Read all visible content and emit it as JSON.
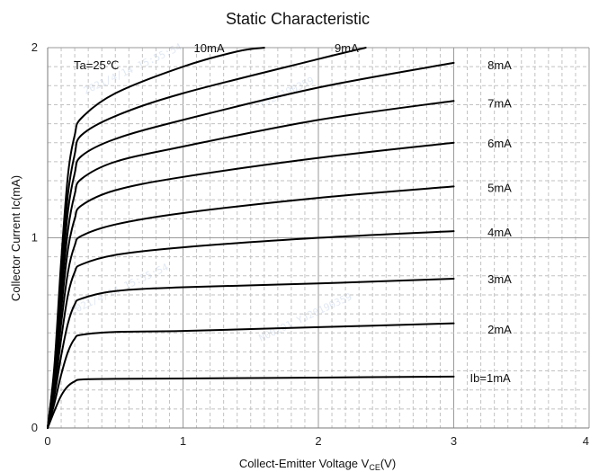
{
  "chart_data": {
    "type": "line",
    "title": "Static Characteristic",
    "xlabel_main": "Collect-Emitter Voltage  V",
    "xlabel_sub": "CE",
    "xlabel_unit": "(V)",
    "ylabel": "Collector  Current   Ic(mA)",
    "annotation": "Ta=25℃",
    "xlim": [
      0,
      4
    ],
    "ylim": [
      0,
      2
    ],
    "x_ticks": [
      "0",
      "1",
      "2",
      "3",
      "4"
    ],
    "y_ticks": [
      "0",
      "1",
      "2"
    ],
    "grid": true,
    "watermarks": [
      "2021/4/14 15:55:54",
      "YJ20190359",
      "2021/4/14 15:55:54",
      "N00201  YJ20190359"
    ],
    "series": [
      {
        "name": "Ib=1mA",
        "label": "Ib=1mA",
        "label_at": [
          3.12,
          0.265
        ],
        "points": [
          [
            0,
            0
          ],
          [
            0.05,
            0.09
          ],
          [
            0.1,
            0.17
          ],
          [
            0.15,
            0.22
          ],
          [
            0.2,
            0.245
          ],
          [
            0.25,
            0.255
          ],
          [
            0.5,
            0.258
          ],
          [
            1,
            0.26
          ],
          [
            2,
            0.265
          ],
          [
            3,
            0.27
          ]
        ]
      },
      {
        "name": "2mA",
        "label": "2mA",
        "label_at": [
          3.25,
          0.52
        ],
        "points": [
          [
            0,
            0
          ],
          [
            0.05,
            0.13
          ],
          [
            0.1,
            0.28
          ],
          [
            0.15,
            0.4
          ],
          [
            0.2,
            0.47
          ],
          [
            0.25,
            0.49
          ],
          [
            0.5,
            0.505
          ],
          [
            1,
            0.51
          ],
          [
            2,
            0.53
          ],
          [
            3,
            0.55
          ]
        ]
      },
      {
        "name": "3mA",
        "label": "3mA",
        "label_at": [
          3.25,
          0.785
        ],
        "points": [
          [
            0,
            0
          ],
          [
            0.05,
            0.17
          ],
          [
            0.1,
            0.38
          ],
          [
            0.15,
            0.55
          ],
          [
            0.2,
            0.65
          ],
          [
            0.25,
            0.68
          ],
          [
            0.5,
            0.72
          ],
          [
            1,
            0.74
          ],
          [
            2,
            0.76
          ],
          [
            3,
            0.785
          ]
        ]
      },
      {
        "name": "4mA",
        "label": "4mA",
        "label_at": [
          3.25,
          1.03
        ],
        "points": [
          [
            0,
            0
          ],
          [
            0.05,
            0.2
          ],
          [
            0.1,
            0.47
          ],
          [
            0.15,
            0.7
          ],
          [
            0.2,
            0.82
          ],
          [
            0.25,
            0.86
          ],
          [
            0.5,
            0.91
          ],
          [
            1,
            0.95
          ],
          [
            2,
            1.0
          ],
          [
            3,
            1.035
          ]
        ]
      },
      {
        "name": "5mA",
        "label": "5mA",
        "label_at": [
          3.25,
          1.265
        ],
        "points": [
          [
            0,
            0
          ],
          [
            0.05,
            0.23
          ],
          [
            0.1,
            0.55
          ],
          [
            0.15,
            0.82
          ],
          [
            0.2,
            0.96
          ],
          [
            0.25,
            1.01
          ],
          [
            0.5,
            1.07
          ],
          [
            1,
            1.13
          ],
          [
            2,
            1.21
          ],
          [
            3,
            1.27
          ]
        ]
      },
      {
        "name": "6mA",
        "label": "6mA",
        "label_at": [
          3.25,
          1.5
        ],
        "points": [
          [
            0,
            0
          ],
          [
            0.05,
            0.25
          ],
          [
            0.1,
            0.62
          ],
          [
            0.15,
            0.94
          ],
          [
            0.2,
            1.1
          ],
          [
            0.25,
            1.17
          ],
          [
            0.5,
            1.25
          ],
          [
            1,
            1.32
          ],
          [
            2,
            1.42
          ],
          [
            3,
            1.5
          ]
        ]
      },
      {
        "name": "7mA",
        "label": "7mA",
        "label_at": [
          3.25,
          1.71
        ],
        "points": [
          [
            0,
            0
          ],
          [
            0.05,
            0.27
          ],
          [
            0.1,
            0.69
          ],
          [
            0.15,
            1.04
          ],
          [
            0.2,
            1.23
          ],
          [
            0.25,
            1.31
          ],
          [
            0.5,
            1.4
          ],
          [
            1,
            1.48
          ],
          [
            2,
            1.62
          ],
          [
            3,
            1.72
          ]
        ]
      },
      {
        "name": "8mA",
        "label": "8mA",
        "label_at": [
          3.25,
          1.91
        ],
        "points": [
          [
            0,
            0
          ],
          [
            0.05,
            0.29
          ],
          [
            0.1,
            0.75
          ],
          [
            0.15,
            1.14
          ],
          [
            0.2,
            1.34
          ],
          [
            0.25,
            1.43
          ],
          [
            0.5,
            1.52
          ],
          [
            1,
            1.62
          ],
          [
            2,
            1.79
          ],
          [
            3,
            1.92
          ]
        ]
      },
      {
        "name": "9mA",
        "label": "9mA",
        "label_at": [
          2.12,
          2.0
        ],
        "points": [
          [
            0,
            0
          ],
          [
            0.05,
            0.31
          ],
          [
            0.1,
            0.81
          ],
          [
            0.15,
            1.23
          ],
          [
            0.2,
            1.44
          ],
          [
            0.25,
            1.54
          ],
          [
            0.5,
            1.64
          ],
          [
            1,
            1.76
          ],
          [
            2,
            1.94
          ],
          [
            2.35,
            2.0
          ]
        ]
      },
      {
        "name": "10mA",
        "label": "10mA",
        "label_at": [
          1.08,
          2.0
        ],
        "points": [
          [
            0,
            0
          ],
          [
            0.05,
            0.33
          ],
          [
            0.1,
            0.88
          ],
          [
            0.15,
            1.33
          ],
          [
            0.2,
            1.54
          ],
          [
            0.25,
            1.63
          ],
          [
            0.5,
            1.76
          ],
          [
            1,
            1.9
          ],
          [
            1.4,
            1.98
          ],
          [
            1.6,
            2.0
          ]
        ]
      }
    ]
  }
}
